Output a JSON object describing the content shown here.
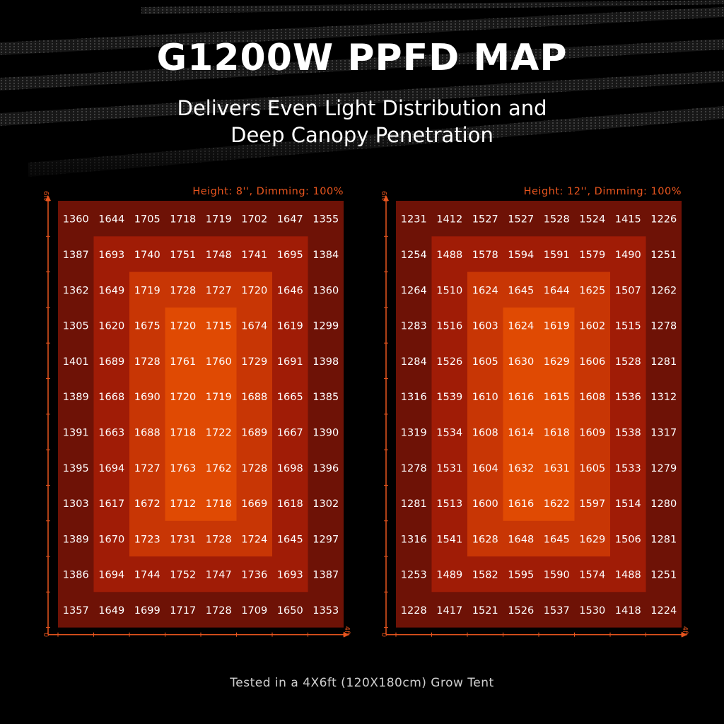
{
  "header": {
    "title": "G1200W PPFD MAP",
    "subtitle_line1": "Delivers Even Light Distribution and",
    "subtitle_line2": "Deep Canopy Penetration"
  },
  "footer": {
    "text": "Tested in a 4X6ft (120X180cm) Grow Tent"
  },
  "colors": {
    "accent": "#e8551e",
    "ring1": "#6e1206",
    "ring2": "#a01c06",
    "ring3": "#c83605",
    "ring4": "#e04a03",
    "axis": "#e8551e"
  },
  "chart_data": [
    {
      "type": "heatmap",
      "title": "Height: 8'', Dimming: 100%",
      "y_axis_top_label": "6ft",
      "x_axis_end_label": "4ft",
      "origin_label": "0",
      "columns": 8,
      "rows": 12,
      "values": [
        [
          1360,
          1644,
          1705,
          1718,
          1719,
          1702,
          1647,
          1355
        ],
        [
          1387,
          1693,
          1740,
          1751,
          1748,
          1741,
          1695,
          1384
        ],
        [
          1362,
          1649,
          1719,
          1728,
          1727,
          1720,
          1646,
          1360
        ],
        [
          1305,
          1620,
          1675,
          1720,
          1715,
          1674,
          1619,
          1299
        ],
        [
          1401,
          1689,
          1728,
          1761,
          1760,
          1729,
          1691,
          1398
        ],
        [
          1389,
          1668,
          1690,
          1720,
          1719,
          1688,
          1665,
          1385
        ],
        [
          1391,
          1663,
          1688,
          1718,
          1722,
          1689,
          1667,
          1390
        ],
        [
          1395,
          1694,
          1727,
          1763,
          1762,
          1728,
          1698,
          1396
        ],
        [
          1303,
          1617,
          1672,
          1712,
          1718,
          1669,
          1618,
          1302
        ],
        [
          1389,
          1670,
          1723,
          1731,
          1728,
          1724,
          1645,
          1297
        ],
        [
          1386,
          1694,
          1744,
          1752,
          1747,
          1736,
          1693,
          1387
        ],
        [
          1357,
          1649,
          1699,
          1717,
          1728,
          1709,
          1650,
          1353
        ]
      ]
    },
    {
      "type": "heatmap",
      "title": "Height: 12'', Dimming: 100%",
      "y_axis_top_label": "6ft",
      "x_axis_end_label": "4ft",
      "origin_label": "0",
      "columns": 8,
      "rows": 12,
      "values": [
        [
          1231,
          1412,
          1527,
          1527,
          1528,
          1524,
          1415,
          1226
        ],
        [
          1254,
          1488,
          1578,
          1594,
          1591,
          1579,
          1490,
          1251
        ],
        [
          1264,
          1510,
          1624,
          1645,
          1644,
          1625,
          1507,
          1262
        ],
        [
          1283,
          1516,
          1603,
          1624,
          1619,
          1602,
          1515,
          1278
        ],
        [
          1284,
          1526,
          1605,
          1630,
          1629,
          1606,
          1528,
          1281
        ],
        [
          1316,
          1539,
          1610,
          1616,
          1615,
          1608,
          1536,
          1312
        ],
        [
          1319,
          1534,
          1608,
          1614,
          1618,
          1609,
          1538,
          1317
        ],
        [
          1278,
          1531,
          1604,
          1632,
          1631,
          1605,
          1533,
          1279
        ],
        [
          1281,
          1513,
          1600,
          1616,
          1622,
          1597,
          1514,
          1280
        ],
        [
          1316,
          1541,
          1628,
          1648,
          1645,
          1629,
          1506,
          1281
        ],
        [
          1253,
          1489,
          1582,
          1595,
          1590,
          1574,
          1488,
          1251
        ],
        [
          1228,
          1417,
          1521,
          1526,
          1537,
          1530,
          1418,
          1224
        ]
      ]
    }
  ]
}
